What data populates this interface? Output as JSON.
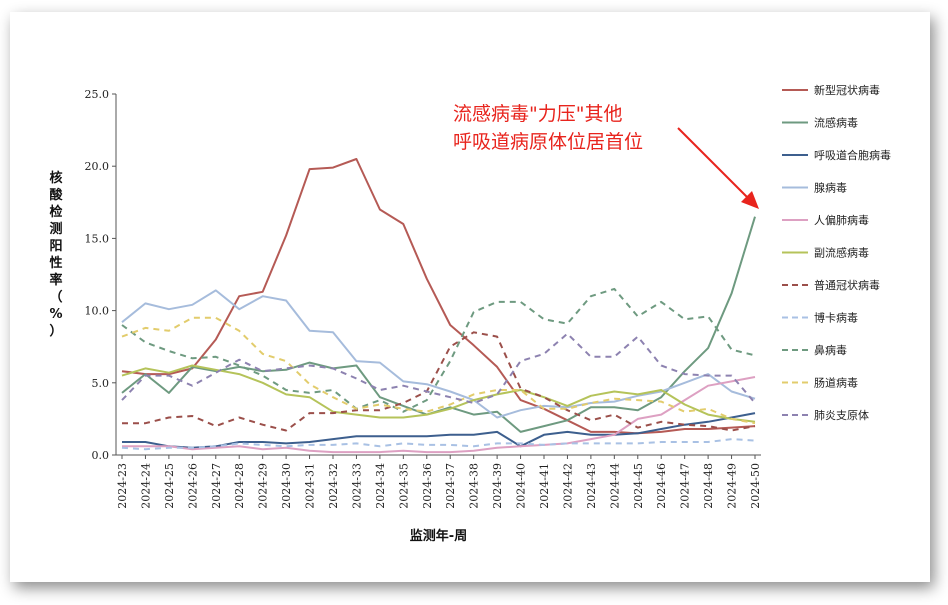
{
  "chart_data": {
    "type": "line",
    "xlabel": "监测年-周",
    "ylabel": "核酸检测阳性率（%）",
    "ylim": [
      0,
      25
    ],
    "yticks": [
      "0.0",
      "5.0",
      "10.0",
      "15.0",
      "20.0",
      "25.0"
    ],
    "x": [
      "2024-23",
      "2024-24",
      "2024-25",
      "2024-26",
      "2024-27",
      "2024-28",
      "2024-29",
      "2024-30",
      "2024-31",
      "2024-32",
      "2024-33",
      "2024-34",
      "2024-35",
      "2024-36",
      "2024-37",
      "2024-38",
      "2024-39",
      "2024-40",
      "2024-41",
      "2024-42",
      "2024-43",
      "2024-44",
      "2024-45",
      "2024-46",
      "2024-47",
      "2024-48",
      "2024-49",
      "2024-50"
    ],
    "annotation": {
      "lines": [
        "流感病毒\"力压\"其他",
        "呼吸道病原体位居首位"
      ],
      "color": "#e8241d"
    },
    "legend_position": "right",
    "series": [
      {
        "name": "新型冠状病毒",
        "color": "#b55a55",
        "dash": false,
        "values": [
          5.8,
          5.6,
          5.6,
          6.0,
          8.0,
          11.0,
          11.3,
          15.2,
          19.8,
          19.9,
          20.5,
          17.0,
          16.0,
          12.2,
          9.0,
          7.6,
          6.1,
          3.8,
          3.2,
          2.4,
          1.6,
          1.6,
          1.5,
          1.6,
          1.8,
          1.8,
          1.9,
          2.0
        ]
      },
      {
        "name": "流感病毒",
        "color": "#6e9a80",
        "dash": false,
        "values": [
          4.3,
          5.6,
          4.3,
          6.1,
          5.8,
          6.1,
          5.8,
          5.9,
          6.4,
          6.0,
          6.2,
          4.0,
          3.4,
          2.8,
          3.3,
          2.8,
          3.0,
          1.6,
          2.0,
          2.4,
          3.3,
          3.3,
          3.1,
          4.0,
          5.8,
          7.4,
          11.2,
          16.5
        ]
      },
      {
        "name": "呼吸道合胞病毒",
        "color": "#3d5f8e",
        "dash": false,
        "values": [
          0.9,
          0.9,
          0.6,
          0.5,
          0.6,
          0.9,
          0.9,
          0.8,
          0.9,
          1.1,
          1.3,
          1.3,
          1.3,
          1.3,
          1.4,
          1.4,
          1.6,
          0.6,
          1.4,
          1.6,
          1.4,
          1.4,
          1.5,
          1.8,
          2.1,
          2.3,
          2.6,
          2.9
        ]
      },
      {
        "name": "腺病毒",
        "color": "#a6bcdc",
        "dash": false,
        "values": [
          9.2,
          10.5,
          10.1,
          10.4,
          11.4,
          10.1,
          11.0,
          10.7,
          8.6,
          8.5,
          6.5,
          6.4,
          5.1,
          4.9,
          4.4,
          3.8,
          2.6,
          3.1,
          3.4,
          3.3,
          3.6,
          3.7,
          4.1,
          4.4,
          5.0,
          5.6,
          4.4,
          3.9
        ]
      },
      {
        "name": "人偏肺病毒",
        "color": "#dda0c2",
        "dash": false,
        "values": [
          0.6,
          0.6,
          0.6,
          0.4,
          0.5,
          0.6,
          0.4,
          0.5,
          0.3,
          0.2,
          0.2,
          0.2,
          0.3,
          0.2,
          0.2,
          0.3,
          0.5,
          0.6,
          0.7,
          0.8,
          1.1,
          1.4,
          2.5,
          2.8,
          3.8,
          4.8,
          5.1,
          5.4
        ]
      },
      {
        "name": "副流感病毒",
        "color": "#b5c35a",
        "dash": false,
        "values": [
          5.5,
          6.0,
          5.7,
          6.2,
          5.9,
          5.6,
          5.0,
          4.2,
          4.0,
          3.0,
          2.8,
          2.6,
          2.6,
          2.8,
          3.2,
          3.8,
          4.2,
          4.5,
          4.0,
          3.4,
          4.1,
          4.4,
          4.2,
          4.5,
          3.5,
          2.8,
          2.5,
          2.3
        ]
      },
      {
        "name": "普通冠状病毒",
        "color": "#9b4f4a",
        "dash": true,
        "values": [
          2.2,
          2.2,
          2.6,
          2.7,
          2.0,
          2.6,
          2.1,
          1.7,
          2.9,
          2.9,
          3.1,
          3.1,
          3.6,
          4.4,
          7.5,
          8.5,
          8.2,
          4.6,
          4.0,
          3.1,
          2.4,
          2.8,
          1.9,
          2.3,
          2.1,
          2.0,
          1.7,
          2.0
        ]
      },
      {
        "name": "博卡病毒",
        "color": "#a9c1e4",
        "dash": true,
        "values": [
          0.5,
          0.4,
          0.5,
          0.5,
          0.6,
          0.8,
          0.7,
          0.6,
          0.7,
          0.7,
          0.8,
          0.6,
          0.8,
          0.7,
          0.7,
          0.6,
          0.8,
          0.8,
          0.7,
          0.8,
          0.8,
          0.8,
          0.8,
          0.9,
          0.9,
          0.9,
          1.1,
          1.0
        ]
      },
      {
        "name": "鼻病毒",
        "color": "#6e9a80",
        "dash": true,
        "values": [
          9.0,
          7.8,
          7.2,
          6.7,
          6.8,
          6.2,
          5.5,
          4.5,
          4.3,
          4.5,
          3.2,
          3.8,
          3.0,
          3.8,
          6.5,
          9.9,
          10.6,
          10.6,
          9.4,
          9.1,
          11.0,
          11.5,
          9.6,
          10.6,
          9.4,
          9.6,
          7.3,
          6.9
        ]
      },
      {
        "name": "肠道病毒",
        "color": "#e2cc6c",
        "dash": true,
        "values": [
          8.2,
          8.8,
          8.6,
          9.5,
          9.5,
          8.6,
          7.0,
          6.5,
          4.9,
          4.0,
          3.2,
          3.5,
          3.2,
          3.0,
          3.5,
          4.2,
          4.5,
          4.5,
          3.2,
          3.2,
          3.6,
          3.9,
          3.8,
          3.7,
          3.0,
          3.2,
          2.5,
          2.2
        ]
      },
      {
        "name": "肺炎支原体",
        "color": "#8d82b0",
        "dash": true,
        "values": [
          3.8,
          5.5,
          5.5,
          4.8,
          5.7,
          6.6,
          5.8,
          6.0,
          6.2,
          6.0,
          5.3,
          4.5,
          4.8,
          4.4,
          4.0,
          3.6,
          4.2,
          6.5,
          7.0,
          8.4,
          6.8,
          6.8,
          8.2,
          6.2,
          5.6,
          5.5,
          5.5,
          3.6
        ]
      }
    ]
  }
}
